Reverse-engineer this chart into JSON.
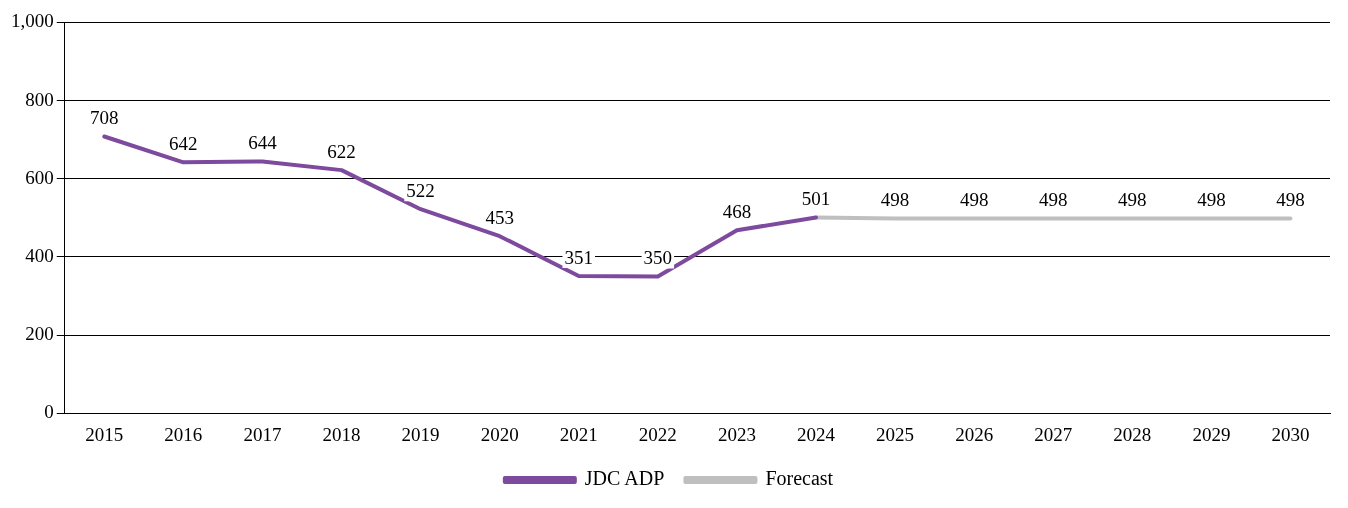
{
  "chart_data": {
    "type": "line",
    "categories": [
      "2015",
      "2016",
      "2017",
      "2018",
      "2019",
      "2020",
      "2021",
      "2022",
      "2023",
      "2024",
      "2025",
      "2026",
      "2027",
      "2028",
      "2029",
      "2030"
    ],
    "series": [
      {
        "name": "JDC ADP",
        "color": "#7d4a9e",
        "values": [
          708,
          642,
          644,
          622,
          522,
          453,
          351,
          350,
          468,
          501,
          null,
          null,
          null,
          null,
          null,
          null
        ],
        "value_labels": [
          "708",
          "642",
          "644",
          "622",
          "522",
          "453",
          "351",
          "350",
          "468",
          "501",
          null,
          null,
          null,
          null,
          null,
          null
        ]
      },
      {
        "name": "Forecast",
        "color": "#bfbfbf",
        "values": [
          null,
          null,
          null,
          null,
          null,
          null,
          null,
          null,
          null,
          501,
          498,
          498,
          498,
          498,
          498,
          498
        ],
        "value_labels": [
          null,
          null,
          null,
          null,
          null,
          null,
          null,
          null,
          null,
          null,
          "498",
          "498",
          "498",
          "498",
          "498",
          "498"
        ]
      }
    ],
    "ylim": [
      0,
      1000
    ],
    "yticks": [
      0,
      200,
      400,
      600,
      800,
      {
        "value": 1000,
        "label": "1,000"
      }
    ],
    "grid": "y",
    "legend": "bottom",
    "marker": "none",
    "line_style": "solid"
  }
}
